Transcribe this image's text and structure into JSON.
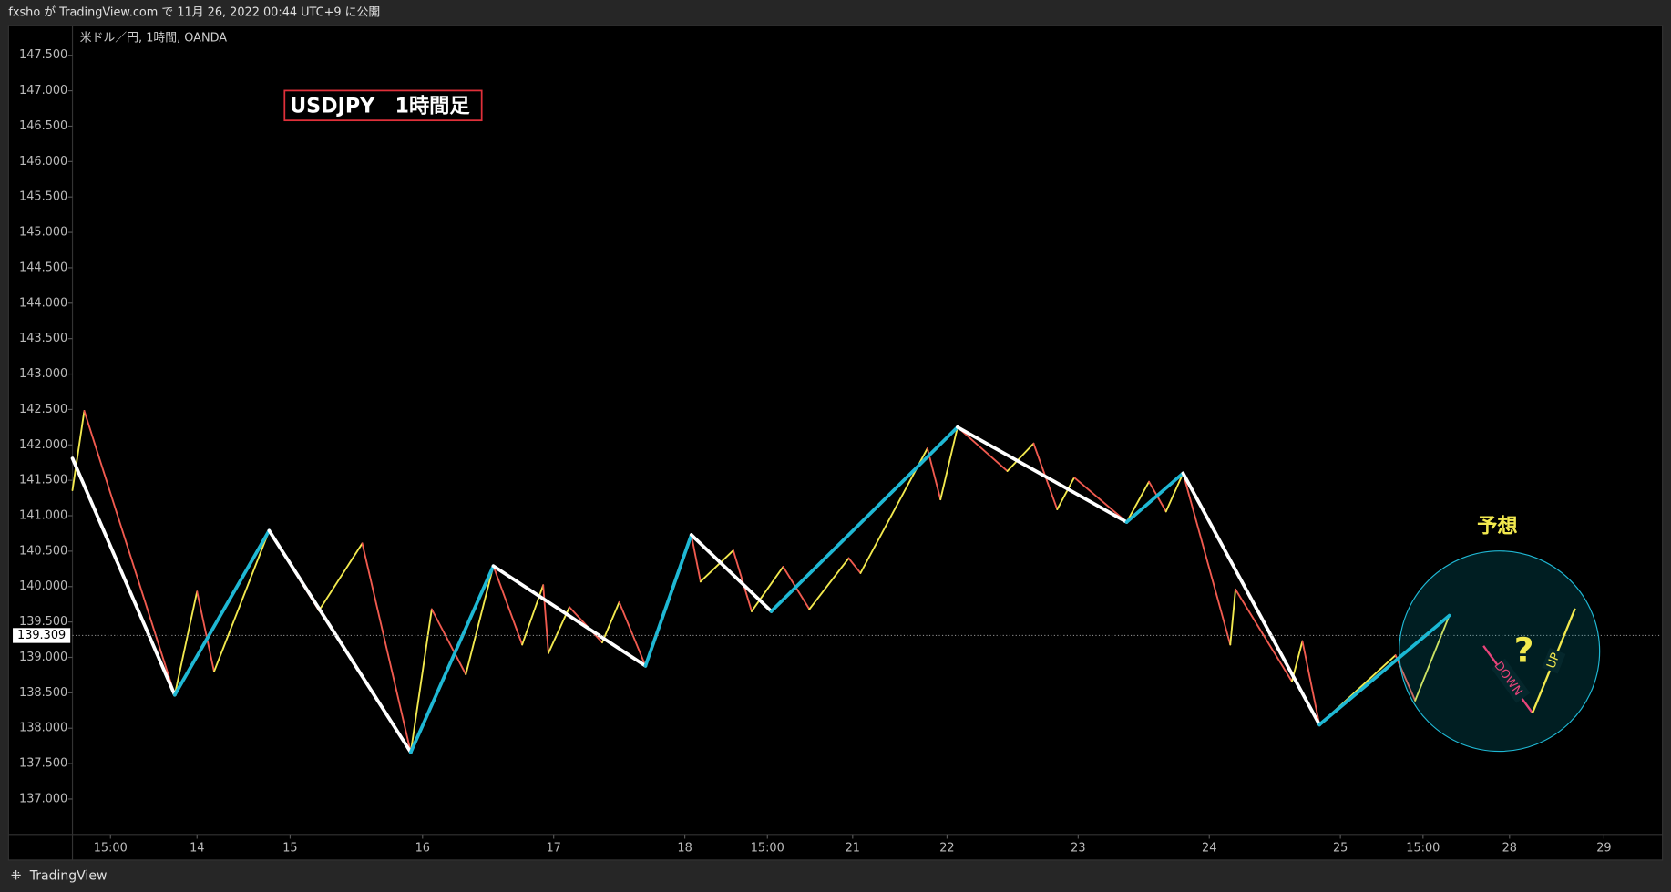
{
  "header": "fxsho が TradingView.com で 11月 26, 2022 00:44 UTC+9 に公開",
  "footer": "TradingView",
  "chart_data": {
    "type": "line",
    "symbol": "米ドル／円, 1時間, OANDA",
    "title": "USDJPY　1時間足",
    "annotations": {
      "forecast": "予想",
      "question": "?",
      "down": "DOWN",
      "up": "UP"
    },
    "last_price": {
      "value": 139.309,
      "label": "139.309"
    },
    "xlim": [
      13.33,
      25.44
    ],
    "xticks": [
      {
        "value": 13.62,
        "label": "15:00"
      },
      {
        "value": 14.28,
        "label": "14"
      },
      {
        "value": 14.99,
        "label": "15"
      },
      {
        "value": 16,
        "label": "16"
      },
      {
        "value": 17,
        "label": "17"
      },
      {
        "value": 18,
        "label": "18"
      },
      {
        "value": 18.63,
        "label": "15:00"
      },
      {
        "value": 19.28,
        "label": "21"
      },
      {
        "value": 20.0,
        "label": "22"
      },
      {
        "value": 21.0,
        "label": "23"
      },
      {
        "value": 22.0,
        "label": "24"
      },
      {
        "value": 23.0,
        "label": "25"
      },
      {
        "value": 23.63,
        "label": "15:00"
      },
      {
        "value": 24.29,
        "label": "28"
      },
      {
        "value": 25.01,
        "label": "29"
      }
    ],
    "ylim": [
      136.5,
      147.92
    ],
    "yticks": [
      {
        "value": 137.0,
        "label": "137.000"
      },
      {
        "value": 137.5,
        "label": "137.500"
      },
      {
        "value": 138.0,
        "label": "138.000"
      },
      {
        "value": 138.5,
        "label": "138.500"
      },
      {
        "value": 139.0,
        "label": "139.000"
      },
      {
        "value": 139.5,
        "label": "139.500"
      },
      {
        "value": 140.0,
        "label": "140.000"
      },
      {
        "value": 140.5,
        "label": "140.500"
      },
      {
        "value": 141.0,
        "label": "141.000"
      },
      {
        "value": 141.5,
        "label": "141.500"
      },
      {
        "value": 142.0,
        "label": "142.000"
      },
      {
        "value": 142.5,
        "label": "142.500"
      },
      {
        "value": 143.0,
        "label": "143.000"
      },
      {
        "value": 143.5,
        "label": "143.500"
      },
      {
        "value": 144.0,
        "label": "144.000"
      },
      {
        "value": 144.5,
        "label": "144.500"
      },
      {
        "value": 145.0,
        "label": "145.000"
      },
      {
        "value": 145.5,
        "label": "145.500"
      },
      {
        "value": 146.0,
        "label": "146.000"
      },
      {
        "value": 146.5,
        "label": "146.500"
      },
      {
        "value": 147.0,
        "label": "147.000"
      },
      {
        "value": 147.5,
        "label": "147.500"
      }
    ],
    "series": [
      {
        "up_color": "#f2e94e",
        "down_color": "#f05a4f",
        "x": [
          13.33,
          13.42,
          14.11,
          14.28,
          14.41,
          14.83,
          15.21,
          15.54,
          15.91,
          16.07,
          16.33,
          16.54,
          16.76,
          16.92,
          16.96,
          17.12,
          17.37,
          17.5,
          17.7,
          18.05,
          18.12,
          18.37,
          18.51,
          18.75,
          18.95,
          19.25,
          19.34,
          19.85,
          19.95,
          20.08,
          20.46,
          20.66,
          20.84,
          20.97,
          21.37,
          21.54,
          21.67,
          21.8,
          22.16,
          22.2,
          22.63,
          22.71,
          22.84,
          23.42,
          23.57,
          23.83
        ],
        "values": [
          141.36,
          142.48,
          138.47,
          139.93,
          138.8,
          140.79,
          139.66,
          140.61,
          137.66,
          139.68,
          138.76,
          140.29,
          139.18,
          140.02,
          139.06,
          139.71,
          139.21,
          139.78,
          138.88,
          140.73,
          140.07,
          140.51,
          139.65,
          140.28,
          139.68,
          140.4,
          140.19,
          141.95,
          141.23,
          142.25,
          141.63,
          142.02,
          141.09,
          141.54,
          140.91,
          141.48,
          141.06,
          141.6,
          139.18,
          139.96,
          138.66,
          139.23,
          138.05,
          139.03,
          138.39,
          139.59
        ]
      },
      {
        "up_color": "#1fb8d4",
        "down_color": "#ffffff",
        "x": [
          13.33,
          14.11,
          14.83,
          15.91,
          16.54,
          17.7,
          18.05,
          18.66,
          20.08,
          21.37,
          21.8,
          22.84,
          23.83
        ],
        "values": [
          141.81,
          138.47,
          140.79,
          137.66,
          140.29,
          138.88,
          140.73,
          139.65,
          142.25,
          140.91,
          141.6,
          138.05,
          139.59
        ]
      }
    ]
  }
}
